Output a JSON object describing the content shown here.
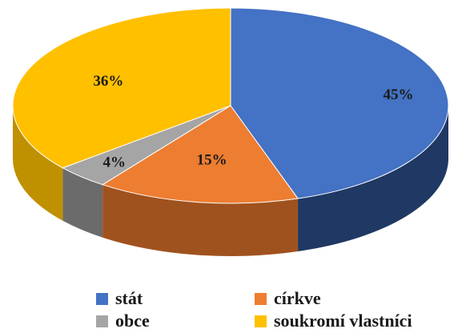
{
  "chart_data": {
    "type": "pie",
    "title": "",
    "slices": [
      {
        "label": "stát",
        "value": 45,
        "display": "45%",
        "color": "#4472C4",
        "side_color": "#1F3864"
      },
      {
        "label": "církve",
        "value": 15,
        "display": "15%",
        "color": "#ED7D31",
        "side_color": "#A0521E"
      },
      {
        "label": "obce",
        "value": 4,
        "display": "4%",
        "color": "#A5A5A5",
        "side_color": "#6B6B6B"
      },
      {
        "label": "soukromí vlastníci",
        "value": 36,
        "display": "36%",
        "color": "#FFC000",
        "side_color": "#BF9000"
      }
    ],
    "legend_placement": "bottom",
    "style": "3d"
  }
}
